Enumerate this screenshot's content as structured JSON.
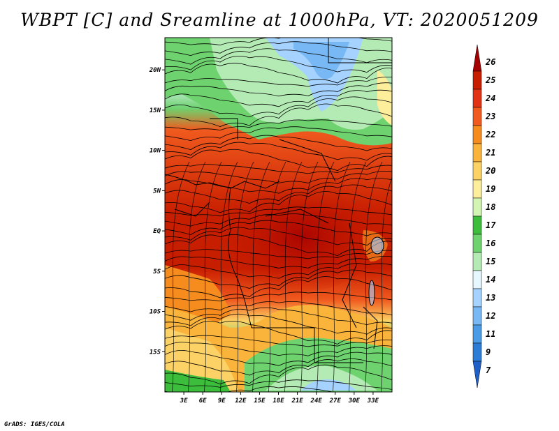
{
  "title": "WBPT [C] and Sreamline at 1000hPa, VT: 2020051209",
  "credit": "GrADS: IGES/COLA",
  "map": {
    "lon_range": [
      0,
      36
    ],
    "lat_range": [
      -20,
      24
    ],
    "lon_ticks": [
      {
        "value": 3,
        "label": "3E"
      },
      {
        "value": 6,
        "label": "6E"
      },
      {
        "value": 9,
        "label": "9E"
      },
      {
        "value": 12,
        "label": "12E"
      },
      {
        "value": 15,
        "label": "15E"
      },
      {
        "value": 18,
        "label": "18E"
      },
      {
        "value": 21,
        "label": "21E"
      },
      {
        "value": 24,
        "label": "24E"
      },
      {
        "value": 27,
        "label": "27E"
      },
      {
        "value": 30,
        "label": "30E"
      },
      {
        "value": 33,
        "label": "33E"
      }
    ],
    "lat_ticks": [
      {
        "value": 20,
        "label": "20N"
      },
      {
        "value": 15,
        "label": "15N"
      },
      {
        "value": 10,
        "label": "10N"
      },
      {
        "value": 5,
        "label": "5N"
      },
      {
        "value": 0,
        "label": "EQ"
      },
      {
        "value": -5,
        "label": "5S"
      },
      {
        "value": -10,
        "label": "10S"
      },
      {
        "value": -15,
        "label": "15S"
      }
    ]
  },
  "colorbar": {
    "labels": [
      "26",
      "25",
      "24",
      "23",
      "22",
      "21",
      "20",
      "19",
      "18",
      "17",
      "16",
      "15",
      "14",
      "13",
      "12",
      "11",
      "9",
      "7"
    ],
    "colors": [
      "#a50000",
      "#c81e00",
      "#e13214",
      "#f05a1e",
      "#f78c1e",
      "#fab43c",
      "#fcd266",
      "#fdee9c",
      "#d2f5b4",
      "#3cbe3c",
      "#6ed26e",
      "#b4ebb4",
      "#e6f7ff",
      "#a5d2ff",
      "#78b9f5",
      "#4b9be6",
      "#2d7dd7",
      "#1e5fc8"
    ]
  }
}
